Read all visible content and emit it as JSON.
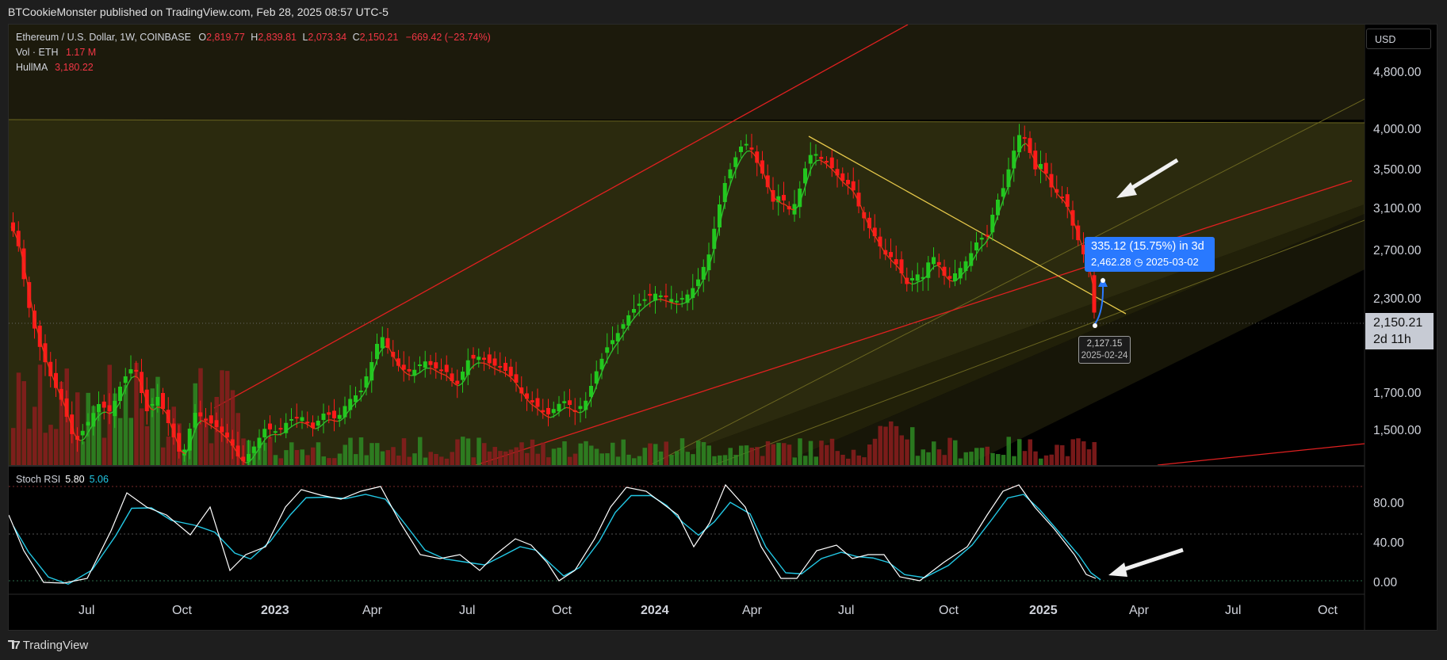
{
  "header": {
    "publisher_line": "BTCookieMonster published on TradingView.com, Feb 28, 2025 08:57 UTC-5"
  },
  "legend": {
    "symbol": "Ethereum / U.S. Dollar, 1W, COINBASE",
    "o_label": "O",
    "o_value": "2,819.77",
    "h_label": "H",
    "h_value": "2,839.81",
    "l_label": "L",
    "l_value": "2,073.34",
    "c_label": "C",
    "c_value": "2,150.21",
    "change": "−669.42 (−23.74%)",
    "vol_label": "Vol · ETH",
    "vol_value": "1.17 M",
    "hull_label": "HullMA",
    "hull_value": "3,180.22"
  },
  "currency_button": "USD",
  "price_axis": {
    "ticks": [
      "4,800.00",
      "4,000.00",
      "3,500.00",
      "3,100.00",
      "2,700.00",
      "2,300.00",
      "1,700.00",
      "1,500.00"
    ],
    "last_price": "2,150.21",
    "countdown": "2d 11h"
  },
  "stoch_rsi": {
    "label": "Stoch RSI",
    "k_value": "5.80",
    "d_value": "5.06",
    "ticks": [
      "80.00",
      "40.00",
      "0.00"
    ]
  },
  "time_axis": [
    "Jul",
    "Oct",
    "2023",
    "Apr",
    "Jul",
    "Oct",
    "2024",
    "Apr",
    "Jul",
    "Oct",
    "2025",
    "Apr",
    "Jul",
    "Oct"
  ],
  "measure_tool": {
    "line1": "335.12 (15.75%) in 3d",
    "line2": "2,462.28",
    "line2_date": "2025-03-02"
  },
  "low_tag": {
    "price": "2,127.15",
    "date": "2025-02-24"
  },
  "footer": {
    "brand": "TradingView"
  },
  "colors": {
    "up": "#22c81e",
    "down": "#ff1a1a",
    "hull_green": "#2ec32e",
    "hull_red": "#e8321a",
    "stoch_k": "#ffffff",
    "stoch_d": "#22c8e5",
    "measure": "#2979ff"
  }
}
